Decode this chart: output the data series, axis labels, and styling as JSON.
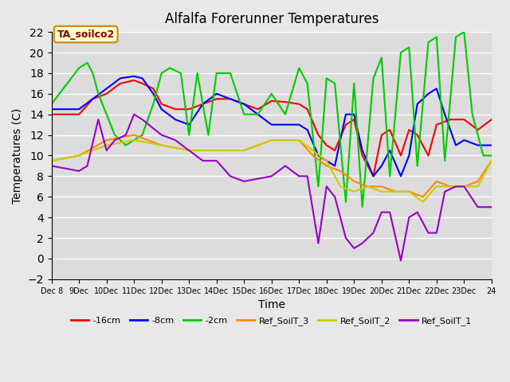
{
  "title": "Alfalfa Forerunner Temperatures",
  "xlabel": "Time",
  "ylabel": "Temperatures (C)",
  "annotation": "TA_soilco2",
  "ylim": [
    -2,
    22
  ],
  "background_color": "#e8e8e8",
  "plot_bg_color": "#dcdcdc",
  "series": {
    "-16cm": {
      "color": "#ff0000",
      "x": [
        8,
        9,
        9.5,
        10,
        10.5,
        11,
        11.3,
        11.7,
        12,
        12.5,
        13,
        13.5,
        14,
        14.5,
        15,
        15.5,
        16,
        16.5,
        17,
        17.3,
        17.7,
        18,
        18.3,
        18.7,
        19,
        19.3,
        19.7,
        20,
        20.3,
        20.7,
        21,
        21.3,
        21.7,
        22,
        22.5,
        23,
        23.5,
        24
      ],
      "y": [
        14,
        14,
        15.5,
        16,
        17,
        17.3,
        17,
        16.5,
        15,
        14.5,
        14.5,
        15,
        15.5,
        15.5,
        15,
        14.5,
        15.3,
        15.2,
        15,
        14.5,
        12,
        11,
        10.5,
        13,
        13.5,
        10,
        8,
        12,
        12.5,
        10,
        12.5,
        12,
        10,
        13,
        13.5,
        13.5,
        12.5,
        13.5
      ]
    },
    "-8cm": {
      "color": "#0000ff",
      "x": [
        8,
        9,
        9.5,
        10,
        10.5,
        11,
        11.3,
        11.7,
        12,
        12.5,
        13,
        13.5,
        14,
        14.5,
        15,
        15.5,
        16,
        16.5,
        17,
        17.3,
        17.7,
        18,
        18.3,
        18.7,
        19,
        19.3,
        19.7,
        20,
        20.3,
        20.7,
        21,
        21.3,
        21.7,
        22,
        22.3,
        22.7,
        23,
        23.5,
        24
      ],
      "y": [
        14.5,
        14.5,
        15.5,
        16.5,
        17.5,
        17.7,
        17.5,
        16,
        14.5,
        13.5,
        13,
        15,
        16,
        15.5,
        15,
        14,
        13,
        13,
        13,
        12.5,
        10,
        9.5,
        9,
        14,
        14,
        10.5,
        8,
        9,
        10.5,
        8,
        10,
        15,
        16,
        16.5,
        14,
        11,
        11.5,
        11,
        11
      ]
    },
    "-2cm": {
      "color": "#00cc00",
      "x": [
        8,
        9,
        9.3,
        9.5,
        9.7,
        10,
        10.3,
        10.7,
        11,
        11.3,
        11.7,
        12,
        12.3,
        12.7,
        13,
        13.3,
        13.7,
        14,
        14.5,
        15,
        15.5,
        16,
        16.5,
        17,
        17.3,
        17.7,
        18,
        18.3,
        18.7,
        19,
        19.3,
        19.7,
        20,
        20.3,
        20.7,
        21,
        21.3,
        21.7,
        22,
        22.3,
        22.7,
        23,
        23.3,
        23.7,
        24
      ],
      "y": [
        15,
        18.5,
        19,
        18,
        16,
        14,
        12,
        11,
        11.5,
        12,
        15,
        18,
        18.5,
        18,
        12,
        18,
        12,
        18,
        18,
        14,
        14,
        16,
        14,
        18.5,
        17,
        7,
        17.5,
        17,
        5.5,
        17,
        5,
        17.5,
        19.5,
        8,
        20,
        20.5,
        9,
        21,
        21.5,
        9.5,
        21.5,
        22,
        14,
        10,
        10
      ]
    },
    "Ref_SoilT_3": {
      "color": "#ff8800",
      "x": [
        8,
        9,
        10,
        11,
        12,
        13,
        14,
        15,
        16,
        17,
        17.5,
        18,
        18.5,
        19,
        19.5,
        20,
        20.5,
        21,
        21.5,
        22,
        22.5,
        23,
        23.5,
        24
      ],
      "y": [
        9.5,
        10,
        11.5,
        12,
        11,
        10.5,
        10.5,
        10.5,
        11.5,
        11.5,
        10,
        9,
        8.5,
        7.5,
        7,
        7,
        6.5,
        6.5,
        6,
        7.5,
        7,
        7,
        7.5,
        9.5
      ]
    },
    "Ref_SoilT_2": {
      "color": "#cccc00",
      "x": [
        8,
        9,
        10,
        11,
        12,
        13,
        14,
        15,
        16,
        17,
        17.5,
        18,
        18.5,
        19,
        19.5,
        20,
        20.5,
        21,
        21.5,
        22,
        22.5,
        23,
        23.5,
        24
      ],
      "y": [
        9.5,
        10,
        11,
        11.5,
        11,
        10.5,
        10.5,
        10.5,
        11.5,
        11.5,
        10.5,
        9.5,
        7,
        6.5,
        7,
        6.5,
        6.5,
        6.5,
        5.5,
        7,
        7,
        7,
        7,
        9.5
      ]
    },
    "Ref_SoilT_1": {
      "color": "#9900cc",
      "x": [
        8,
        9,
        9.3,
        9.7,
        10,
        10.3,
        10.7,
        11,
        11.3,
        12,
        12.5,
        13,
        13.5,
        14,
        14.5,
        15,
        16,
        16.5,
        17,
        17.3,
        17.7,
        18,
        18.3,
        18.7,
        19,
        19.3,
        19.7,
        20,
        20.3,
        20.7,
        21,
        21.3,
        21.7,
        22,
        22.3,
        22.7,
        23,
        23.5,
        24
      ],
      "y": [
        9,
        8.5,
        9,
        13.5,
        10.5,
        11.5,
        12,
        14,
        13.5,
        12,
        11.5,
        10.5,
        9.5,
        9.5,
        8,
        7.5,
        8,
        9,
        8,
        8,
        1.5,
        7,
        6,
        2,
        1,
        1.5,
        2.5,
        4.5,
        4.5,
        -0.2,
        4,
        4.5,
        2.5,
        2.5,
        6.5,
        7,
        7,
        5,
        5
      ]
    }
  },
  "xticks": {
    "values": [
      8,
      9,
      10,
      11,
      12,
      13,
      14,
      15,
      16,
      17,
      18,
      19,
      20,
      21,
      22,
      23,
      24
    ],
    "labels": [
      "Dec 8",
      "9Dec",
      "10Dec",
      "11Dec",
      "12Dec",
      "13Dec",
      "14Dec",
      "15Dec",
      "16Dec",
      "17Dec",
      "18Dec",
      "19Dec",
      "20Dec",
      "21Dec",
      "22Dec",
      "23Dec",
      "24"
    ]
  }
}
